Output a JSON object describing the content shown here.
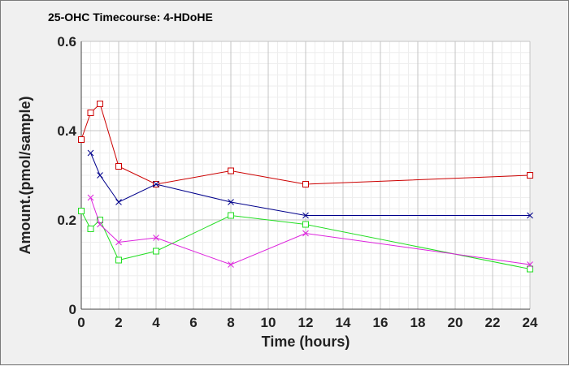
{
  "chart_data": {
    "type": "line",
    "title": "25-OHC Timecourse: 4-HDoHE",
    "xlabel": "Time (hours)",
    "ylabel": "Amount.(pmol/sample)",
    "xlim": [
      0,
      24
    ],
    "ylim": [
      0,
      0.6
    ],
    "xticks": [
      0,
      2,
      4,
      6,
      8,
      10,
      12,
      14,
      16,
      18,
      20,
      22,
      24
    ],
    "yticks": [
      0,
      0.2,
      0.4,
      0.6
    ],
    "xtick_labels": [
      "0",
      "2",
      "4",
      "6",
      "8",
      "10",
      "12",
      "14",
      "16",
      "18",
      "20",
      "22",
      "24"
    ],
    "ytick_labels": [
      "0",
      "0.2",
      "0.4",
      "0.6"
    ],
    "grid": true,
    "legend": "none",
    "series": [
      {
        "color": "#cc0000",
        "marker": "square",
        "x": [
          0,
          0.5,
          1,
          2,
          4,
          8,
          12,
          24
        ],
        "y": [
          0.38,
          0.44,
          0.46,
          0.32,
          0.28,
          0.31,
          0.28,
          0.3
        ]
      },
      {
        "color": "#00008b",
        "marker": "x",
        "x": [
          0.5,
          1,
          2,
          4,
          8,
          12,
          24
        ],
        "y": [
          0.35,
          0.3,
          0.24,
          0.28,
          0.24,
          0.21,
          0.21
        ]
      },
      {
        "color": "#22dd22",
        "marker": "square",
        "x": [
          0,
          0.5,
          1,
          2,
          4,
          8,
          12,
          24
        ],
        "y": [
          0.22,
          0.18,
          0.2,
          0.11,
          0.13,
          0.21,
          0.19,
          0.09
        ]
      },
      {
        "color": "#dd22dd",
        "marker": "x",
        "x": [
          0.5,
          1,
          2,
          4,
          8,
          12,
          24
        ],
        "y": [
          0.25,
          0.19,
          0.15,
          0.16,
          0.1,
          0.17,
          0.1
        ]
      }
    ]
  }
}
